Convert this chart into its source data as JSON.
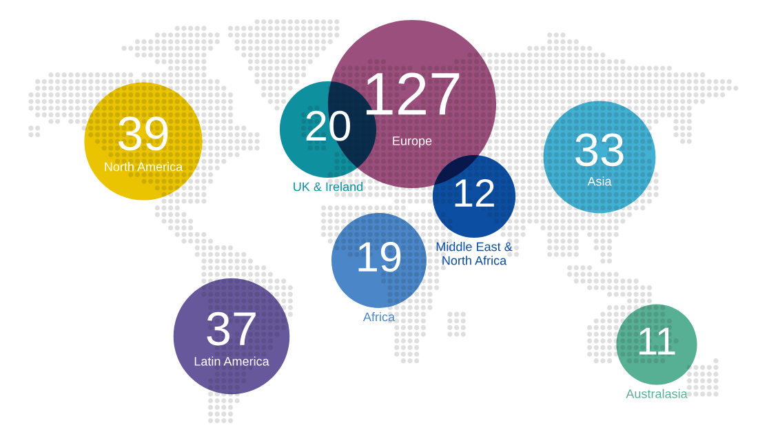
{
  "chart_data": {
    "type": "other",
    "categories": [
      "North America",
      "UK & Ireland",
      "Europe",
      "Asia",
      "Middle East &\nNorth Africa",
      "Africa",
      "Latin America",
      "Australasia"
    ],
    "values": [
      39,
      20,
      127,
      33,
      12,
      19,
      37,
      11
    ],
    "colors": [
      "#eac400",
      "#0e909e",
      "#9b4f7c",
      "#42b0d2",
      "#0b4ea2",
      "#4a86c8",
      "#67589c",
      "#58b094"
    ],
    "data_labels": true
  }
}
